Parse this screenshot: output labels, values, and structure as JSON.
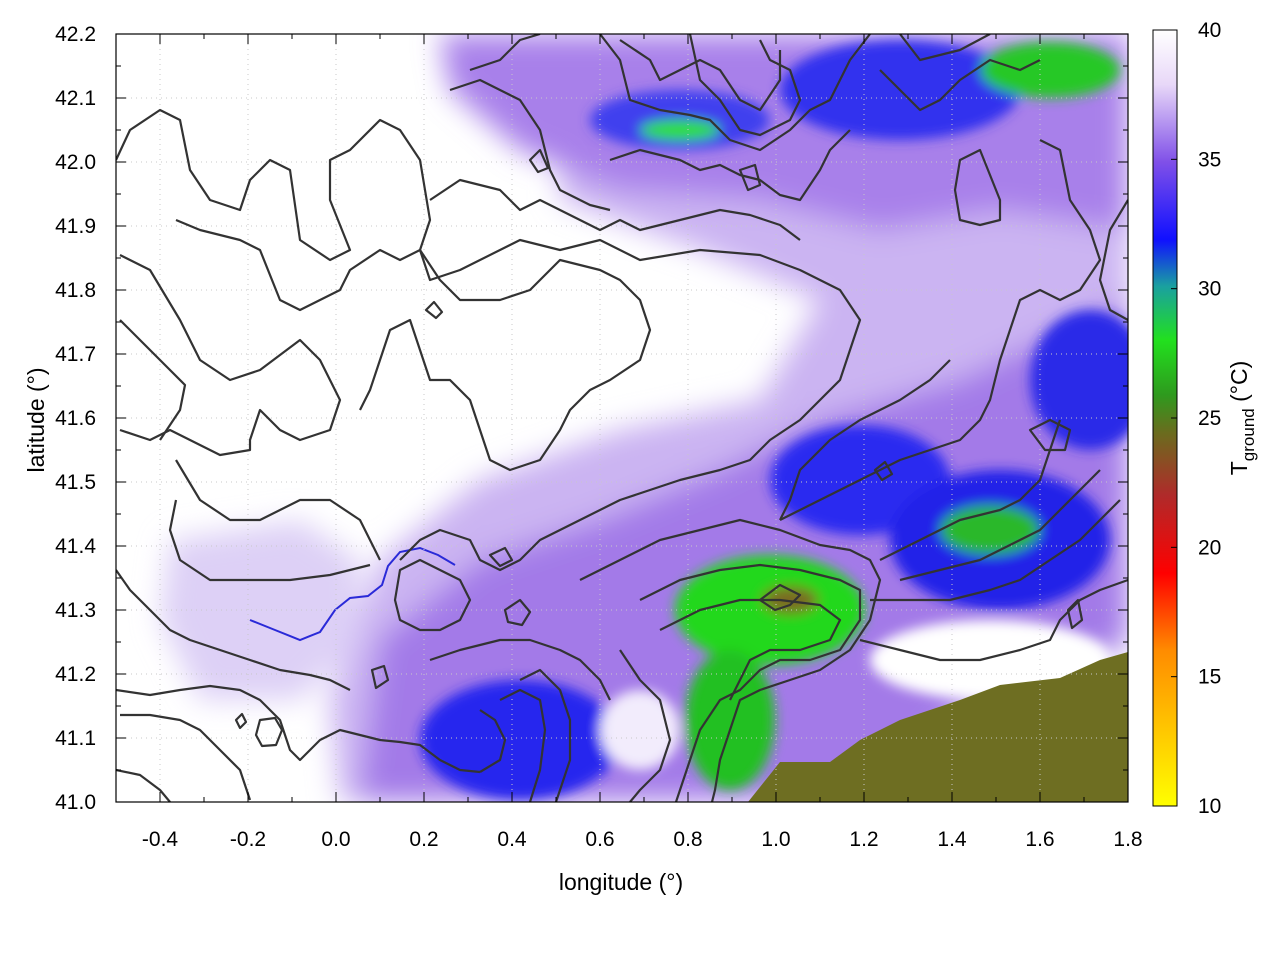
{
  "chart_data": {
    "type": "heatmap",
    "xlabel": "longitude (°)",
    "ylabel": "latitude (°)",
    "colorbar_label_main": "T",
    "colorbar_label_sub": "ground",
    "colorbar_label_unit": " (°C)",
    "xlim": [
      -0.5,
      1.8
    ],
    "ylim": [
      41.0,
      42.2
    ],
    "clim": [
      10,
      40
    ],
    "x_ticks": [
      "-0.4",
      "-0.2",
      "0.0",
      "0.2",
      "0.4",
      "0.6",
      "0.8",
      "1.0",
      "1.2",
      "1.4",
      "1.6",
      "1.8"
    ],
    "x_tick_values": [
      -0.4,
      -0.2,
      0.0,
      0.2,
      0.4,
      0.6,
      0.8,
      1.0,
      1.2,
      1.4,
      1.6,
      1.8
    ],
    "y_ticks": [
      "41.0",
      "41.1",
      "41.2",
      "41.3",
      "41.4",
      "41.5",
      "41.6",
      "41.7",
      "41.8",
      "41.9",
      "42.0",
      "42.1",
      "42.2"
    ],
    "y_tick_values": [
      41.0,
      41.1,
      41.2,
      41.3,
      41.4,
      41.5,
      41.6,
      41.7,
      41.8,
      41.9,
      42.0,
      42.1,
      42.2
    ],
    "colorbar_ticks": [
      "10",
      "15",
      "20",
      "25",
      "30",
      "35",
      "40"
    ],
    "colorbar_tick_values": [
      10,
      15,
      20,
      25,
      30,
      35,
      40
    ],
    "colormap": [
      {
        "t": 10,
        "color": "#ffff00"
      },
      {
        "t": 16,
        "color": "#ff8c00"
      },
      {
        "t": 19,
        "color": "#ff0000"
      },
      {
        "t": 22,
        "color": "#b02a2a"
      },
      {
        "t": 24.5,
        "color": "#6b6b1e"
      },
      {
        "t": 26,
        "color": "#2e9a1e"
      },
      {
        "t": 28,
        "color": "#22e01e"
      },
      {
        "t": 30,
        "color": "#1aa0a0"
      },
      {
        "t": 32,
        "color": "#1010ff"
      },
      {
        "t": 35,
        "color": "#8050e8"
      },
      {
        "t": 38,
        "color": "#e8d8f8"
      },
      {
        "t": 40,
        "color": "#ffffff"
      }
    ],
    "grid": true,
    "legend": "colorbar right",
    "field_samples": [
      {
        "lon": -0.3,
        "lat": 41.6,
        "t": 39.5
      },
      {
        "lon": 0.0,
        "lat": 41.8,
        "t": 40.0
      },
      {
        "lon": 0.3,
        "lat": 41.9,
        "t": 39.0
      },
      {
        "lon": 0.6,
        "lat": 41.7,
        "t": 38.5
      },
      {
        "lon": 0.9,
        "lat": 41.9,
        "t": 38.0
      },
      {
        "lon": 0.9,
        "lat": 42.15,
        "t": 34.0
      },
      {
        "lon": 1.6,
        "lat": 42.15,
        "t": 28.0
      },
      {
        "lon": 1.5,
        "lat": 41.75,
        "t": 34.0
      },
      {
        "lon": 1.3,
        "lat": 41.55,
        "t": 32.0
      },
      {
        "lon": 1.55,
        "lat": 41.45,
        "t": 29.0
      },
      {
        "lon": 0.9,
        "lat": 41.3,
        "t": 27.5
      },
      {
        "lon": 0.85,
        "lat": 41.1,
        "t": 29.0
      },
      {
        "lon": 0.45,
        "lat": 41.15,
        "t": 32.0
      },
      {
        "lon": 0.2,
        "lat": 41.3,
        "t": 36.0
      },
      {
        "lon": 1.4,
        "lat": 41.1,
        "t": 24.0
      },
      {
        "lon": 1.3,
        "lat": 41.25,
        "t": 40.0
      }
    ]
  }
}
